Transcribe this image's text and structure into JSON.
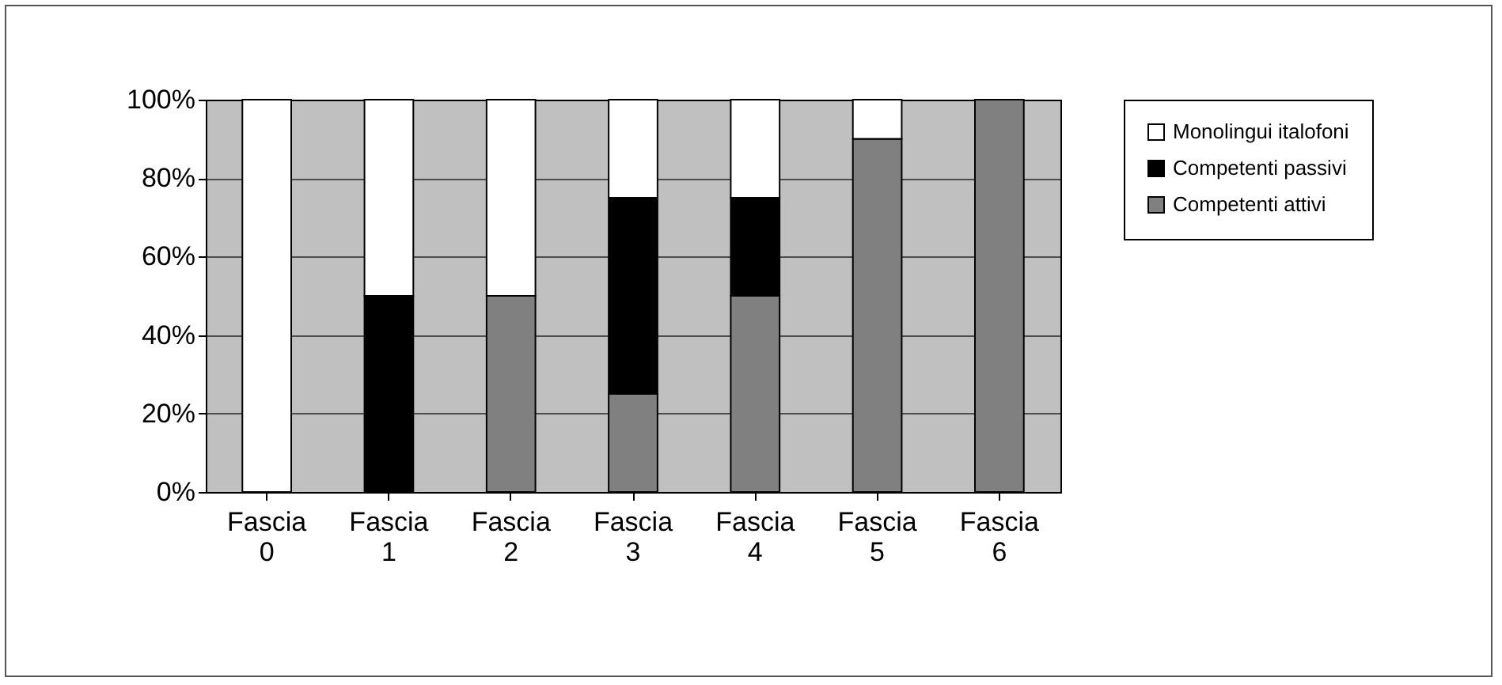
{
  "chart_data": {
    "type": "bar",
    "stacked": true,
    "categories": [
      "Fascia 0",
      "Fascia 1",
      "Fascia 2",
      "Fascia 3",
      "Fascia 4",
      "Fascia 5",
      "Fascia 6"
    ],
    "series": [
      {
        "name": "Competenti attivi",
        "color": "#808080",
        "values": [
          0,
          0,
          50,
          25,
          50,
          90,
          100
        ]
      },
      {
        "name": "Competenti passivi",
        "color": "#000000",
        "values": [
          0,
          50,
          0,
          50,
          25,
          0,
          0
        ]
      },
      {
        "name": "Monolingui italofoni",
        "color": "#ffffff",
        "values": [
          100,
          50,
          50,
          25,
          25,
          10,
          0
        ]
      }
    ],
    "ylim": [
      0,
      100
    ],
    "yticks": [
      {
        "value": 0,
        "label": "0%"
      },
      {
        "value": 20,
        "label": "20%"
      },
      {
        "value": 40,
        "label": "40%"
      },
      {
        "value": 60,
        "label": "60%"
      },
      {
        "value": 80,
        "label": "80%"
      },
      {
        "value": 100,
        "label": "100%"
      }
    ],
    "grid": "y",
    "legend": "right"
  }
}
